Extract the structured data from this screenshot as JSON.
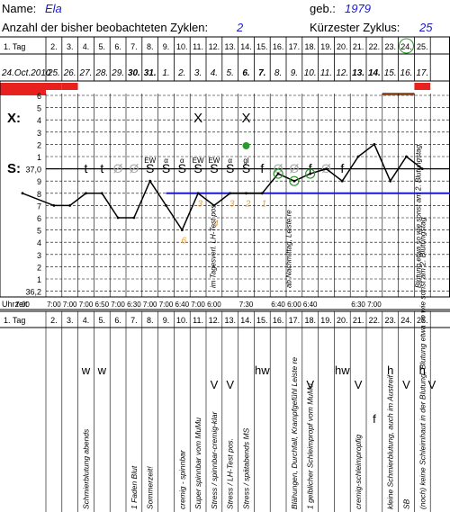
{
  "header": {
    "name_label": "Name:",
    "name_value": "Ela",
    "born_label": "geb.:",
    "born_value": "1979",
    "cycles_label": "Anzahl der bisher beobachteten Zyklen:",
    "cycles_value": "2",
    "shortest_label": "Kürzester Zyklus:",
    "shortest_value": "25"
  },
  "row_labels": {
    "tag": "1. Tag",
    "x": "X:",
    "s": "S:",
    "uhrzeit": "Uhrzeit",
    "temp_label_top": "37,0",
    "temp_label_bottom": "36,2"
  },
  "days": [
    "1. Tag",
    "2.",
    "3.",
    "4.",
    "5.",
    "6.",
    "7.",
    "8.",
    "9.",
    "10.",
    "11.",
    "12.",
    "13.",
    "14.",
    "15.",
    "16.",
    "17.",
    "18.",
    "19.",
    "20.",
    "21.",
    "22.",
    "23.",
    "24.",
    "25."
  ],
  "dates": [
    {
      "t": "24.Oct.2010",
      "b": false
    },
    {
      "t": "25.",
      "b": false
    },
    {
      "t": "26.",
      "b": false
    },
    {
      "t": "27.",
      "b": false
    },
    {
      "t": "28.",
      "b": false
    },
    {
      "t": "29.",
      "b": false
    },
    {
      "t": "30.",
      "b": true
    },
    {
      "t": "31.",
      "b": true
    },
    {
      "t": "1.",
      "b": false
    },
    {
      "t": "2.",
      "b": false
    },
    {
      "t": "3.",
      "b": false
    },
    {
      "t": "4.",
      "b": false
    },
    {
      "t": "5.",
      "b": false
    },
    {
      "t": "6.",
      "b": true
    },
    {
      "t": "7.",
      "b": true
    },
    {
      "t": "8.",
      "b": false
    },
    {
      "t": "9.",
      "b": false
    },
    {
      "t": "10.",
      "b": false
    },
    {
      "t": "11.",
      "b": false
    },
    {
      "t": "12.",
      "b": false
    },
    {
      "t": "13.",
      "b": true
    },
    {
      "t": "14.",
      "b": true
    },
    {
      "t": "15.",
      "b": false
    },
    {
      "t": "16.",
      "b": false
    },
    {
      "t": "17.",
      "b": false
    }
  ],
  "temp_scale": [
    "6",
    "5",
    "4",
    "3",
    "2",
    "1",
    "37,0",
    "9",
    "8",
    "7",
    "6",
    "5",
    "4",
    "3",
    "2",
    "1",
    "36,2"
  ],
  "bleeding_levels": [
    3,
    2,
    2,
    0,
    0,
    0,
    0,
    0,
    0,
    0,
    0,
    0,
    0,
    0,
    0,
    0,
    0,
    0,
    0,
    0,
    0,
    0,
    1,
    1,
    2
  ],
  "x_marks": [
    "",
    "",
    "",
    "",
    "",
    "",
    "",
    "",
    "",
    "",
    "X",
    "",
    "",
    "X",
    "",
    "",
    "",
    "",
    "",
    "",
    "",
    "",
    "",
    "",
    ""
  ],
  "s_row": [
    {
      "t": "",
      "c": "#000"
    },
    {
      "t": "",
      "c": "#000"
    },
    {
      "t": "",
      "c": "#000"
    },
    {
      "t": "t",
      "c": "#000"
    },
    {
      "t": "t",
      "c": "#000"
    },
    {
      "t": "Ø",
      "c": "#aaa"
    },
    {
      "t": "Ø",
      "c": "#aaa"
    },
    {
      "t": "S",
      "c": "#000"
    },
    {
      "t": "S",
      "c": "#000"
    },
    {
      "t": "S",
      "c": "#000"
    },
    {
      "t": "S",
      "c": "#000"
    },
    {
      "t": "S",
      "c": "#000"
    },
    {
      "t": "S",
      "c": "#000"
    },
    {
      "t": "S",
      "c": "#000"
    },
    {
      "t": "f",
      "c": "#000"
    },
    {
      "t": "Ø",
      "c": "#aaa"
    },
    {
      "t": "Ø",
      "c": "#aaa"
    },
    {
      "t": "f",
      "c": "#000"
    },
    {
      "t": "Ø",
      "c": "#aaa"
    },
    {
      "t": "f",
      "c": "#000"
    },
    {
      "t": "",
      "c": "#000"
    },
    {
      "t": "",
      "c": "#000"
    },
    {
      "t": "",
      "c": "#000"
    },
    {
      "t": "",
      "c": "#000"
    },
    {
      "t": "",
      "c": "#000"
    }
  ],
  "s_superscripts": [
    "",
    "",
    "",
    "",
    "",
    "",
    "",
    "EW",
    "α",
    "α",
    "EW",
    "EW",
    "α",
    "gl",
    "",
    "",
    "",
    "",
    "",
    "",
    "",
    "",
    "",
    "",
    ""
  ],
  "temperatures": [
    8,
    7,
    7,
    8,
    8,
    6,
    6,
    9,
    7,
    5,
    8,
    7,
    8,
    8,
    8,
    9.6,
    9,
    9.6,
    10,
    9,
    11,
    12,
    9,
    11,
    10
  ],
  "coverline": 8,
  "numbers_below": [
    {
      "d": 9,
      "n": "6",
      "v": 4.2
    },
    {
      "d": 10,
      "n": "3",
      "v": 7.2
    },
    {
      "d": 11,
      "n": "4",
      "v": 5.6
    },
    {
      "d": 12,
      "n": "3",
      "v": 7.2
    },
    {
      "d": 13,
      "n": "2",
      "v": 7.2
    },
    {
      "d": 14,
      "n": "1",
      "v": 7.2
    }
  ],
  "green_circles": [
    15,
    16,
    17
  ],
  "green_dot_day": 13,
  "circled_day": 23,
  "times": [
    "7:00",
    "7:00",
    "7:00",
    "7:00",
    "6:50",
    "7:00",
    "6:30",
    "7:00",
    "7:00",
    "6:40",
    "7:00",
    "6:00",
    "",
    "7:30",
    "",
    "6:40",
    "6:00",
    "6:40",
    "",
    "",
    "6:30",
    "7:00",
    "",
    "",
    ""
  ],
  "notes": [
    {
      "d": 3,
      "t": "Schmierblutung abends"
    },
    {
      "d": 6,
      "t": "1 Faden Blut"
    },
    {
      "d": 7,
      "t": "Sommerzeit!"
    },
    {
      "d": 9,
      "t": "cremig - spinnbar"
    },
    {
      "d": 10,
      "t": "Super spinnbar vom MuMu"
    },
    {
      "d": 11,
      "t": "Stress / spinnbar-cremig-klar"
    },
    {
      "d": 12,
      "t": "Stress / LH-Test pos."
    },
    {
      "d": 13,
      "t": "Stress / spätabends MS"
    },
    {
      "d": 16,
      "t": "Blähungen, Durchfall, Krampfgefühl Leiste re"
    },
    {
      "d": 17,
      "t": "1 gelblicher Schleimpropf vom MuMu"
    },
    {
      "d": 20,
      "t": "cremig-schleimpropfig"
    },
    {
      "d": 22,
      "t": "kleine Schmierblutung, auch im Austreif"
    },
    {
      "d": 23,
      "t": "SB"
    },
    {
      "d": 24,
      "t": "(noch) keine Schleimhaut in der Blutung, Blutung etwa so wie sonst am 2. Blutungstag"
    }
  ],
  "overlay_notes": [
    {
      "d": 11.6,
      "t": "im Tagesverl. LH-Test pos."
    },
    {
      "d": 16.3,
      "t": "ab Nachmittag, Leiste re"
    },
    {
      "d": 24.4,
      "t": "Blutung etwa so wie sonst am 2. Blutungstag"
    }
  ],
  "lower_marks": [
    {
      "d": 3,
      "t": "w"
    },
    {
      "d": 4,
      "t": "w"
    },
    {
      "d": 11,
      "t": "V"
    },
    {
      "d": 12,
      "t": "V"
    },
    {
      "d": 14,
      "t": "hw"
    },
    {
      "d": 17,
      "t": "V"
    },
    {
      "d": 19,
      "t": "hw"
    },
    {
      "d": 20,
      "t": "V"
    },
    {
      "d": 21,
      "t": "f"
    },
    {
      "d": 22,
      "t": "h"
    },
    {
      "d": 23,
      "t": "V"
    },
    {
      "d": 24,
      "t": "h"
    },
    {
      "d": 24.6,
      "t": "V"
    }
  ],
  "colors": {
    "blood": "#e8211e",
    "spotting": "#a0521e",
    "temp_line": "#000000",
    "coverline": "#1a1acc",
    "count_numbers": "#f0a030",
    "green": "#2a9a2a",
    "value_text": "#1a1acc"
  }
}
